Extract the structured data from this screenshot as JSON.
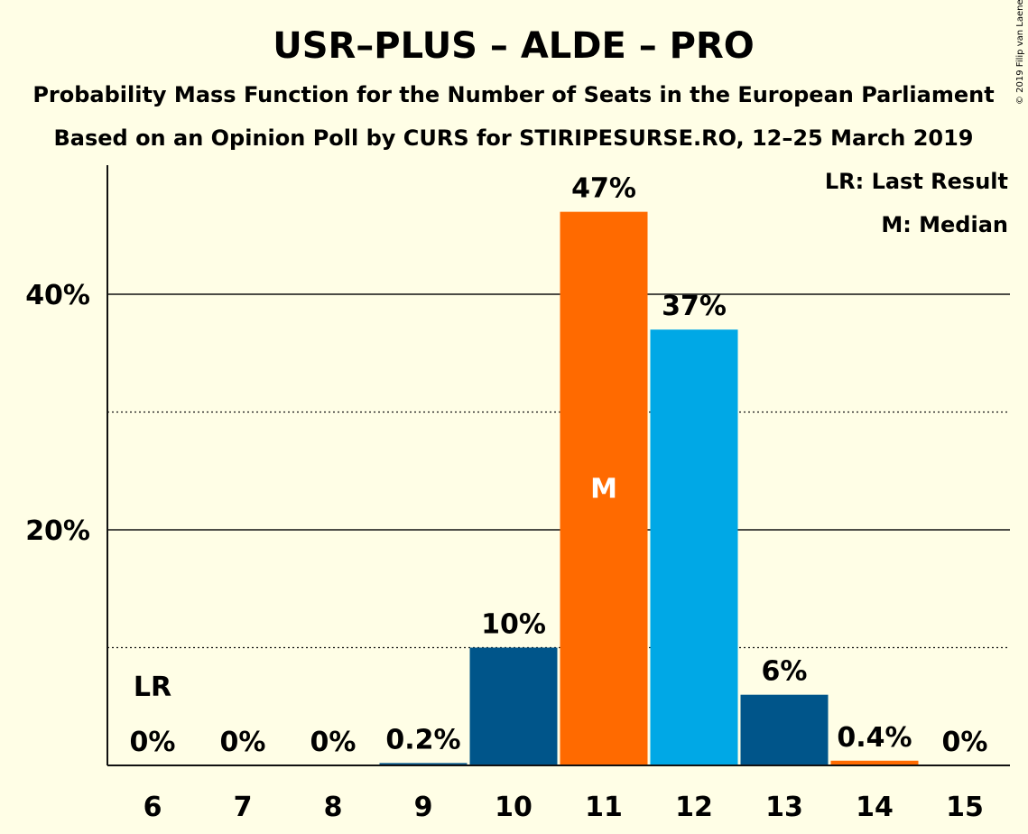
{
  "chart_data": {
    "type": "bar",
    "title": "USR–PLUS – ALDE – PRO",
    "subtitle_lines": [
      "Probability Mass Function for the Number of Seats in the European Parliament",
      "Based on an Opinion Poll by CURS for STIRIPESURSE.RO, 12–25 March 2019"
    ],
    "categories": [
      "6",
      "7",
      "8",
      "9",
      "10",
      "11",
      "12",
      "13",
      "14",
      "15"
    ],
    "values": [
      0,
      0,
      0,
      0.2,
      10,
      47,
      37,
      6,
      0.4,
      0
    ],
    "value_labels": [
      "0%",
      "0%",
      "0%",
      "0.2%",
      "10%",
      "47%",
      "37%",
      "6%",
      "0.4%",
      "0%"
    ],
    "bar_colors": [
      "#00558A",
      "#00558A",
      "#00558A",
      "#00558A",
      "#00558A",
      "#FF6A00",
      "#00A8E6",
      "#00558A",
      "#FF6A00",
      "#00558A"
    ],
    "ylim": [
      0,
      50
    ],
    "y_ticks": [
      20,
      40
    ],
    "y_tick_labels": [
      "20%",
      "40%"
    ],
    "y_minor_gridlines": [
      10,
      30
    ],
    "last_result_marker": {
      "category": "6",
      "label": "LR"
    },
    "median_marker": {
      "category": "11",
      "label": "M"
    },
    "legend": {
      "position": "top-right",
      "entries": [
        "LR: Last Result",
        "M: Median"
      ]
    },
    "copyright": "© 2019 Filip van Laenen"
  }
}
